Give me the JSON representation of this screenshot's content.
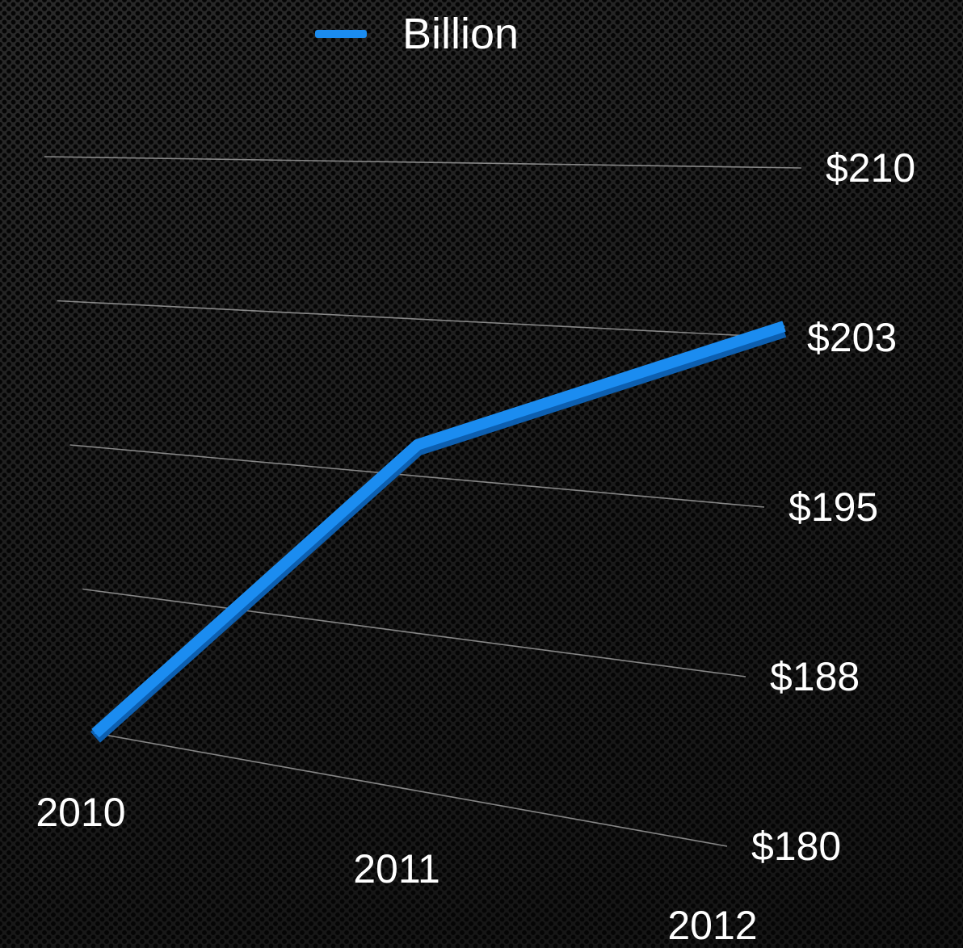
{
  "legend": {
    "label": "Billion",
    "color": "#1b8cf0"
  },
  "chart_data": {
    "type": "line",
    "title": "",
    "xlabel": "",
    "ylabel": "",
    "categories": [
      "2010",
      "2011",
      "2012"
    ],
    "series": [
      {
        "name": "Billion",
        "color": "#1b8cf0",
        "values": [
          180,
          196.5,
          203
        ]
      }
    ],
    "y_ticks": [
      "$180",
      "$188",
      "$195",
      "$203",
      "$210"
    ],
    "y_tick_values": [
      180,
      187.5,
      195,
      202.5,
      210
    ],
    "ylim": [
      180,
      210
    ],
    "grid": true,
    "legend_position": "top",
    "style": "3d-perspective"
  }
}
